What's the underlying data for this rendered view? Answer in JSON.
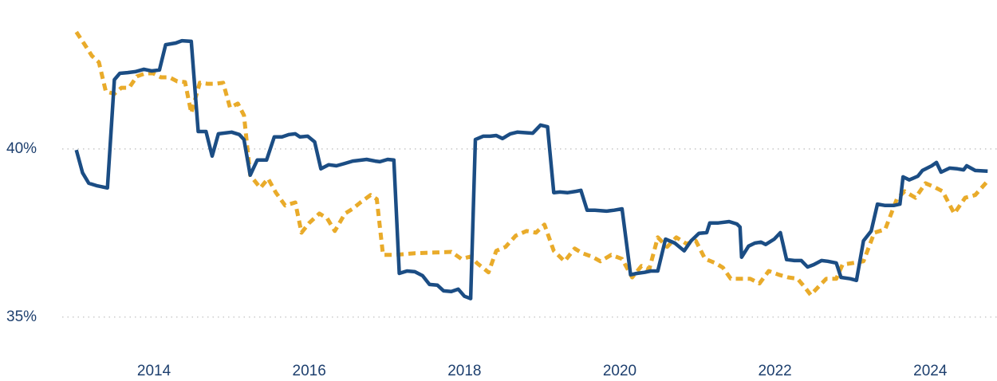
{
  "chart_data": {
    "type": "line",
    "x_ticks_note_free": null,
    "xlim": [
      2012.9,
      2024.85
    ],
    "xticks": [
      2014,
      2016,
      2018,
      2020,
      2022,
      2024
    ],
    "ylim": [
      34,
      43.8
    ],
    "yticks": [
      {
        "value": 35,
        "label": "35%"
      },
      {
        "value": 40,
        "label": "40%"
      }
    ],
    "grid": true,
    "series": [
      {
        "color": "#1b4d84",
        "dash": false,
        "x": [
          2013.0,
          2013.08,
          2013.16,
          2013.26,
          2013.4,
          2013.49,
          2013.56,
          2013.66,
          2013.76,
          2013.87,
          2013.97,
          2014.07,
          2014.15,
          2014.28,
          2014.36,
          2014.48,
          2014.57,
          2014.67,
          2014.75,
          2014.83,
          2015.0,
          2015.1,
          2015.16,
          2015.24,
          2015.33,
          2015.45,
          2015.55,
          2015.65,
          2015.74,
          2015.82,
          2015.88,
          2015.98,
          2016.07,
          2016.15,
          2016.25,
          2016.35,
          2016.46,
          2016.56,
          2016.74,
          2016.85,
          2016.91,
          2017.01,
          2017.09,
          2017.16,
          2017.26,
          2017.36,
          2017.46,
          2017.55,
          2017.65,
          2017.73,
          2017.83,
          2017.92,
          2018.0,
          2018.08,
          2018.14,
          2018.24,
          2018.33,
          2018.41,
          2018.49,
          2018.59,
          2018.68,
          2018.88,
          2018.98,
          2019.07,
          2019.15,
          2019.23,
          2019.33,
          2019.44,
          2019.5,
          2019.58,
          2019.68,
          2019.83,
          2019.93,
          2020.03,
          2020.14,
          2020.22,
          2020.32,
          2020.4,
          2020.49,
          2020.59,
          2020.71,
          2020.83,
          2020.92,
          2021.02,
          2021.12,
          2021.16,
          2021.27,
          2021.41,
          2021.51,
          2021.55,
          2021.57,
          2021.66,
          2021.74,
          2021.82,
          2021.88,
          2021.99,
          2022.07,
          2022.15,
          2022.25,
          2022.34,
          2022.42,
          2022.5,
          2022.6,
          2022.68,
          2022.79,
          2022.85,
          2022.97,
          2023.05,
          2023.14,
          2023.24,
          2023.32,
          2023.42,
          2023.53,
          2023.61,
          2023.65,
          2023.73,
          2023.84,
          2023.9,
          2024.02,
          2024.08,
          2024.14,
          2024.25,
          2024.35,
          2024.43,
          2024.47,
          2024.58,
          2024.74
        ],
        "values": [
          39.97,
          39.29,
          38.98,
          38.91,
          38.84,
          42.06,
          42.25,
          42.27,
          42.3,
          42.37,
          42.32,
          42.35,
          43.1,
          43.15,
          43.22,
          43.2,
          40.52,
          40.52,
          39.79,
          40.45,
          40.5,
          40.43,
          40.28,
          39.22,
          39.67,
          39.67,
          40.36,
          40.36,
          40.43,
          40.45,
          40.36,
          40.38,
          40.21,
          39.41,
          39.53,
          39.5,
          39.57,
          39.64,
          39.69,
          39.64,
          39.62,
          39.69,
          39.67,
          36.3,
          36.37,
          36.35,
          36.23,
          35.97,
          35.95,
          35.78,
          35.76,
          35.83,
          35.62,
          35.55,
          40.28,
          40.38,
          40.38,
          40.4,
          40.31,
          40.45,
          40.5,
          40.47,
          40.71,
          40.66,
          38.7,
          38.72,
          38.7,
          38.74,
          38.77,
          38.18,
          38.18,
          38.15,
          38.18,
          38.22,
          36.26,
          36.3,
          36.33,
          36.37,
          36.37,
          37.32,
          37.2,
          36.97,
          37.27,
          37.49,
          37.51,
          37.8,
          37.8,
          37.84,
          37.77,
          37.68,
          36.78,
          37.11,
          37.2,
          37.23,
          37.16,
          37.32,
          37.51,
          36.71,
          36.68,
          36.68,
          36.49,
          36.56,
          36.68,
          36.66,
          36.61,
          36.18,
          36.14,
          36.09,
          37.27,
          37.56,
          38.36,
          38.32,
          38.32,
          38.36,
          39.17,
          39.08,
          39.19,
          39.36,
          39.5,
          39.6,
          39.31,
          39.43,
          39.41,
          39.38,
          39.5,
          39.36,
          39.34
        ]
      },
      {
        "color": "#e9ab2a",
        "dash": true,
        "x": [
          2013.0,
          2013.1,
          2013.2,
          2013.29,
          2013.38,
          2013.49,
          2013.58,
          2013.68,
          2013.78,
          2013.89,
          2013.99,
          2014.09,
          2014.2,
          2014.3,
          2014.4,
          2014.48,
          2014.59,
          2014.69,
          2014.79,
          2014.89,
          2014.98,
          2015.08,
          2015.16,
          2015.24,
          2015.37,
          2015.47,
          2015.57,
          2015.69,
          2015.82,
          2015.9,
          2016.0,
          2016.13,
          2016.23,
          2016.33,
          2016.46,
          2016.56,
          2016.66,
          2016.79,
          2016.87,
          2016.95,
          2017.11,
          2017.36,
          2017.62,
          2017.83,
          2017.96,
          2018.08,
          2018.16,
          2018.31,
          2018.41,
          2018.53,
          2018.66,
          2018.8,
          2018.92,
          2019.03,
          2019.15,
          2019.29,
          2019.42,
          2019.52,
          2019.64,
          2019.75,
          2019.89,
          2020.03,
          2020.16,
          2020.28,
          2020.38,
          2020.49,
          2020.61,
          2020.73,
          2020.86,
          2020.98,
          2021.1,
          2021.23,
          2021.33,
          2021.43,
          2021.55,
          2021.68,
          2021.8,
          2021.92,
          2022.05,
          2022.17,
          2022.29,
          2022.38,
          2022.46,
          2022.56,
          2022.66,
          2022.79,
          2022.87,
          2023.01,
          2023.14,
          2023.28,
          2023.42,
          2023.57,
          2023.67,
          2023.81,
          2023.94,
          2024.06,
          2024.16,
          2024.31,
          2024.45,
          2024.58,
          2024.76
        ],
        "values": [
          43.48,
          43.13,
          42.77,
          42.58,
          41.71,
          41.64,
          41.82,
          41.82,
          42.16,
          42.25,
          42.25,
          42.13,
          42.13,
          42.01,
          41.99,
          41.07,
          41.97,
          41.94,
          41.94,
          41.97,
          41.23,
          41.35,
          41.0,
          39.22,
          38.84,
          39.12,
          38.7,
          38.32,
          38.41,
          37.51,
          37.8,
          38.08,
          37.94,
          37.56,
          38.08,
          38.22,
          38.41,
          38.63,
          38.51,
          36.85,
          36.85,
          36.9,
          36.92,
          36.94,
          36.73,
          36.8,
          36.61,
          36.33,
          36.97,
          37.09,
          37.42,
          37.56,
          37.51,
          37.75,
          36.97,
          36.66,
          37.04,
          36.9,
          36.8,
          36.66,
          36.85,
          36.73,
          36.18,
          36.52,
          36.42,
          37.37,
          37.09,
          37.37,
          37.18,
          37.27,
          36.73,
          36.61,
          36.47,
          36.14,
          36.14,
          36.14,
          36.0,
          36.37,
          36.26,
          36.18,
          36.14,
          35.9,
          35.66,
          35.9,
          36.14,
          36.14,
          36.56,
          36.61,
          36.66,
          37.51,
          37.61,
          38.51,
          38.74,
          38.55,
          38.98,
          38.86,
          38.74,
          38.08,
          38.55,
          38.63,
          39.1
        ]
      }
    ]
  }
}
